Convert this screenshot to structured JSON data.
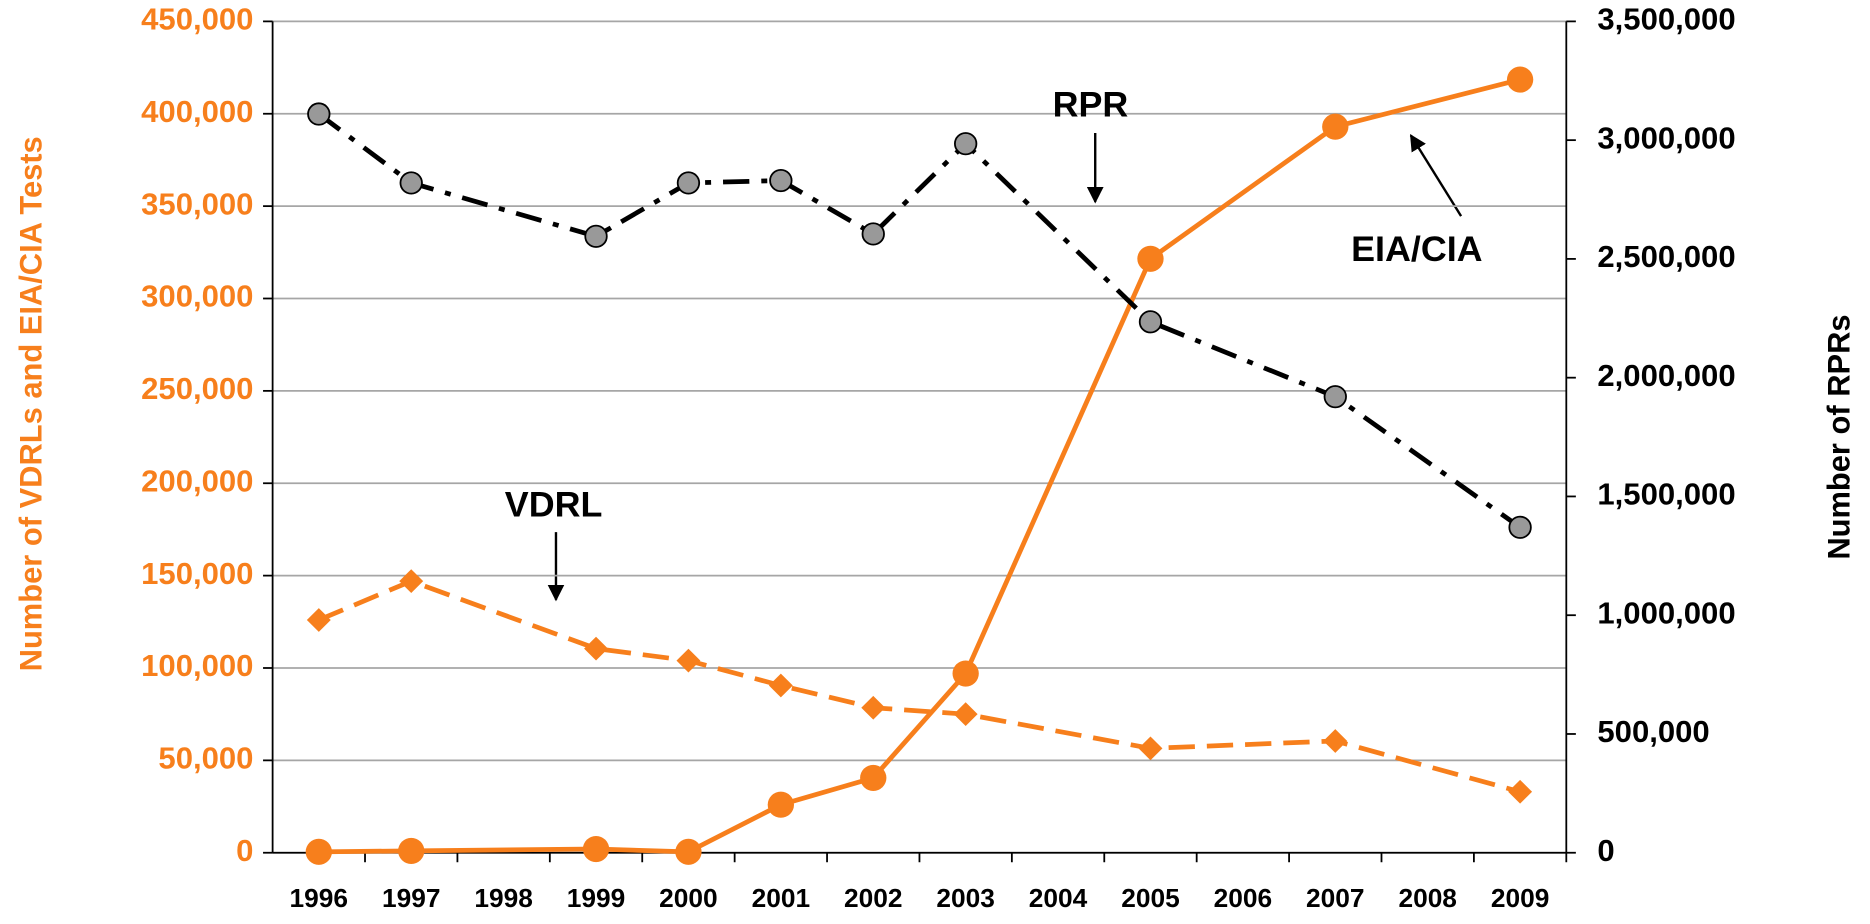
{
  "chart_data": {
    "type": "line",
    "x": [
      1996,
      1997,
      1999,
      2000,
      2001,
      2002,
      2003,
      2005,
      2007,
      2009
    ],
    "xlim": [
      1995.5,
      2009.5
    ],
    "xticks": [
      1996,
      1997,
      1998,
      1999,
      2000,
      2001,
      2002,
      2003,
      2004,
      2005,
      2006,
      2007,
      2008,
      2009
    ],
    "ylim": [
      0,
      450000
    ],
    "yticks": [
      0,
      {
        "value": 50000,
        "label": "50,000"
      },
      {
        "value": 100000,
        "label": "100,000"
      },
      {
        "value": 150000,
        "label": "150,000"
      },
      {
        "value": 200000,
        "label": "200,000"
      },
      {
        "value": 250000,
        "label": "250,000"
      },
      {
        "value": 300000,
        "label": "300,000"
      },
      {
        "value": 350000,
        "label": "350,000"
      },
      {
        "value": 400000,
        "label": "400,000"
      },
      {
        "value": 450000,
        "label": "450,000"
      }
    ],
    "y2lim": [
      0,
      3500000
    ],
    "y2ticks": [
      0,
      {
        "value": 500000,
        "label": "500,000"
      },
      {
        "value": 1000000,
        "label": "1,000,000"
      },
      {
        "value": 1500000,
        "label": "1,500,000"
      },
      {
        "value": 2000000,
        "label": "2,000,000"
      },
      {
        "value": 2500000,
        "label": "2,500,000"
      },
      {
        "value": 3000000,
        "label": "3,000,000"
      },
      {
        "value": 3500000,
        "label": "3,500,000"
      }
    ],
    "ylabel": "Number of VDRLs and EIA/CIA Tests",
    "y2label": "Number of RPRs",
    "grid": true,
    "series": [
      {
        "name": "EIA/CIA",
        "color": "#f77f1c",
        "dash": "solid",
        "marker": "circle",
        "values": [
          500,
          1000,
          2000,
          500,
          26000,
          40500,
          97000,
          321500,
          393000,
          418500
        ]
      },
      {
        "name": "VDRL",
        "color": "#f77f1c",
        "dash": "dashed",
        "marker": "diamond",
        "values": [
          126000,
          147000,
          110500,
          104000,
          90500,
          78500,
          75000,
          56500,
          60500,
          33000
        ]
      },
      {
        "name": "RPR",
        "color": "#000000",
        "dash": "dashdot",
        "marker": "circle",
        "marker_fill": "#999999",
        "axis": "y2",
        "values": [
          3110000,
          2820000,
          2595000,
          2820000,
          2830000,
          2605000,
          2985000,
          2235000,
          1920000,
          1370000
        ]
      }
    ]
  }
}
